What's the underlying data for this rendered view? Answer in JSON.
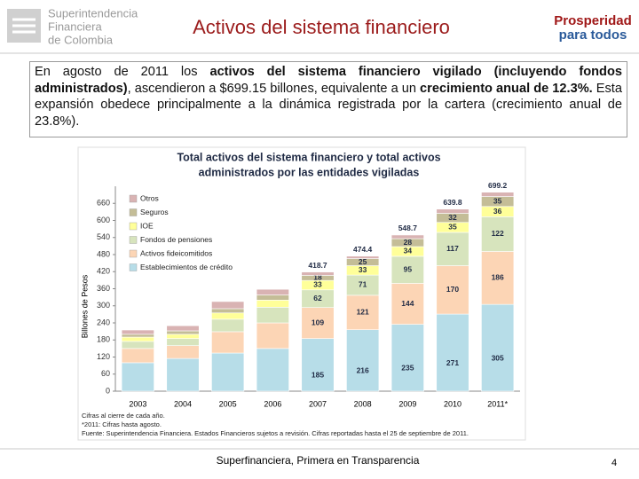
{
  "header": {
    "logo_lines": [
      "Superintendencia",
      "Financiera",
      "de Colombia"
    ],
    "title": "Activos del sistema financiero",
    "right_logo": [
      "Prosperidad",
      "para todos"
    ]
  },
  "paragraph": {
    "runs": [
      {
        "text": "En agosto de 2011 los ",
        "bold": false
      },
      {
        "text": "activos del sistema financiero vigilado (incluyendo fondos administrados)",
        "bold": true
      },
      {
        "text": ", ascendieron a $699.15 billones, equivalente a un ",
        "bold": false
      },
      {
        "text": "crecimiento anual de 12.3%.",
        "bold": true
      },
      {
        "text": " Esta expansión obedece principalmente a la dinámica registrada por la cartera (crecimiento anual de 23.8%).",
        "bold": false
      }
    ]
  },
  "chart_data": {
    "type": "stacked_bar",
    "title": [
      "Total activos del sistema financiero y total activos",
      "administrados por las entidades vigiladas"
    ],
    "y_label": "Billones de Pesos",
    "categories": [
      "2003",
      "2004",
      "2005",
      "2006",
      "2007",
      "2008",
      "2009",
      "2010",
      "2011*"
    ],
    "series": [
      {
        "name": "Establecimientos de crédito",
        "color": "#b7dde8",
        "values": [
          100,
          115,
          134,
          150,
          185,
          216,
          235,
          271,
          305
        ],
        "value_labels": [
          null,
          null,
          null,
          null,
          "185",
          "216",
          "235",
          "271",
          "305"
        ]
      },
      {
        "name": "Activos fideicomitidos",
        "color": "#fcd5b5",
        "values": [
          50,
          45,
          75,
          90,
          109,
          121,
          144,
          170,
          186
        ],
        "value_labels": [
          null,
          null,
          null,
          null,
          "109",
          "121",
          "144",
          "170",
          "186"
        ]
      },
      {
        "name": "Fondos de pensiones",
        "color": "#d7e4bd",
        "values": [
          25,
          25,
          44,
          55,
          62,
          71,
          95,
          117,
          122
        ],
        "value_labels": [
          null,
          null,
          null,
          null,
          "62",
          "71",
          "95",
          "117",
          "122"
        ]
      },
      {
        "name": "IOE",
        "color": "#ffff99",
        "values": [
          15,
          15,
          22,
          25,
          33,
          33,
          34,
          35,
          36
        ],
        "value_labels": [
          null,
          null,
          null,
          null,
          "33",
          "33",
          "34",
          "35",
          "36"
        ]
      },
      {
        "name": "Seguros",
        "color": "#c4bd97",
        "values": [
          10,
          12,
          15,
          18,
          18,
          25,
          28,
          32,
          35
        ],
        "value_labels": [
          null,
          null,
          null,
          null,
          "18",
          "25",
          "28",
          "32",
          "35"
        ]
      },
      {
        "name": "Otros",
        "color": "#d9b3b3",
        "values": [
          15,
          18,
          25,
          20,
          11.7,
          8.4,
          12.7,
          14.8,
          15.2
        ]
      }
    ],
    "totals": [
      null,
      null,
      null,
      null,
      418.7,
      474.4,
      548.7,
      639.8,
      699.2
    ],
    "ylim": [
      0,
      720
    ],
    "yticks": [
      0,
      60,
      120,
      180,
      240,
      300,
      360,
      420,
      480,
      540,
      600,
      660
    ],
    "legend": "upper left",
    "notes": [
      "Cifras al cierre de cada año.",
      "*2011: Cifras hasta agosto.",
      "Fuente: Superintendencia Financiera. Estados Financieros sujetos a revisión. Cifras reportadas hasta el 25 de septiembre de 2011."
    ]
  },
  "footer": {
    "text": "Superfinanciera, Primera en Transparencia",
    "page": "4"
  }
}
